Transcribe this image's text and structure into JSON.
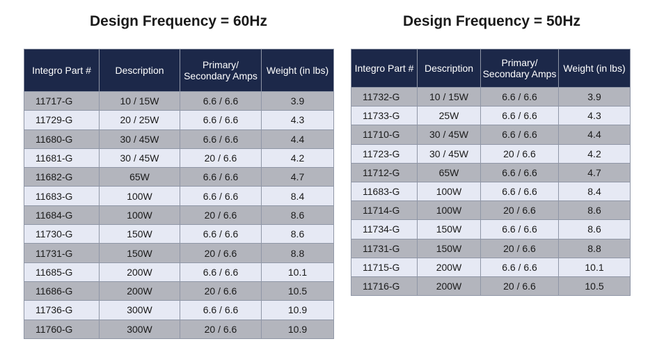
{
  "left": {
    "title": "Design Frequency = 60Hz",
    "headers": [
      "Integro Part #",
      "Description",
      "Primary/ Secondary Amps",
      "Weight (in lbs)"
    ],
    "rows": [
      [
        "11717-G",
        "10 / 15W",
        "6.6 / 6.6",
        "3.9"
      ],
      [
        "11729-G",
        "20 / 25W",
        "6.6 / 6.6",
        "4.3"
      ],
      [
        "11680-G",
        "30 / 45W",
        "6.6 / 6.6",
        "4.4"
      ],
      [
        "11681-G",
        "30 / 45W",
        "20 / 6.6",
        "4.2"
      ],
      [
        "11682-G",
        "65W",
        "6.6 / 6.6",
        "4.7"
      ],
      [
        "11683-G",
        "100W",
        "6.6 / 6.6",
        "8.4"
      ],
      [
        "11684-G",
        "100W",
        "20 / 6.6",
        "8.6"
      ],
      [
        "11730-G",
        "150W",
        "6.6 / 6.6",
        "8.6"
      ],
      [
        "11731-G",
        "150W",
        "20 / 6.6",
        "8.8"
      ],
      [
        "11685-G",
        "200W",
        "6.6 / 6.6",
        "10.1"
      ],
      [
        "11686-G",
        "200W",
        "20 / 6.6",
        "10.5"
      ],
      [
        "11736-G",
        "300W",
        "6.6 / 6.6",
        "10.9"
      ],
      [
        "11760-G",
        "300W",
        "20 / 6.6",
        "10.9"
      ]
    ]
  },
  "right": {
    "title": "Design Frequency = 50Hz",
    "headers": [
      "Integro Part #",
      "Description",
      "Primary/ Secondary Amps",
      "Weight (in lbs)"
    ],
    "rows": [
      [
        "11732-G",
        "10 / 15W",
        "6.6 / 6.6",
        "3.9"
      ],
      [
        "11733-G",
        "25W",
        "6.6 / 6.6",
        "4.3"
      ],
      [
        "11710-G",
        "30 / 45W",
        "6.6 / 6.6",
        "4.4"
      ],
      [
        "11723-G",
        "30 / 45W",
        "20 / 6.6",
        "4.2"
      ],
      [
        "11712-G",
        "65W",
        "6.6 / 6.6",
        "4.7"
      ],
      [
        "11683-G",
        "100W",
        "6.6 / 6.6",
        "8.4"
      ],
      [
        "11714-G",
        "100W",
        "20 / 6.6",
        "8.6"
      ],
      [
        "11734-G",
        "150W",
        "6.6 / 6.6",
        "8.6"
      ],
      [
        "11731-G",
        "150W",
        "20 / 6.6",
        "8.8"
      ],
      [
        "11715-G",
        "200W",
        "6.6 / 6.6",
        "10.1"
      ],
      [
        "11716-G",
        "200W",
        "20 / 6.6",
        "10.5"
      ]
    ]
  },
  "colors": {
    "header_bg": "#1c2849",
    "row_dark": "#b3b5bd",
    "row_light": "#e6e9f4"
  }
}
